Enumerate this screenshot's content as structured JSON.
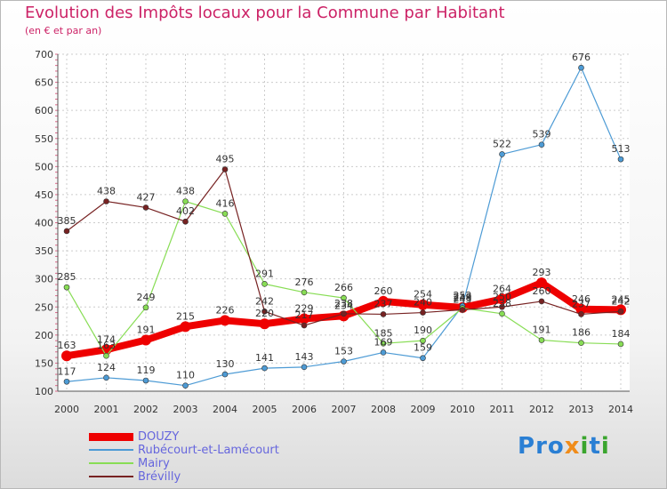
{
  "title": "Evolution des Impôts locaux pour la Commune par Habitant",
  "subtitle": "(en € et par an)",
  "logo": {
    "letters": [
      "P",
      "r",
      "o",
      "x",
      "i",
      "t",
      "i"
    ],
    "colors": [
      "#2a7fd4",
      "#2a7fd4",
      "#2a7fd4",
      "#f08c1a",
      "#3aa52e",
      "#2a7fd4",
      "#3aa52e"
    ]
  },
  "chart_data": {
    "type": "line",
    "x": [
      2000,
      2001,
      2002,
      2003,
      2004,
      2005,
      2006,
      2007,
      2008,
      2009,
      2010,
      2011,
      2012,
      2013,
      2014
    ],
    "ylim": [
      100,
      700
    ],
    "yticks": [
      100,
      150,
      200,
      250,
      300,
      350,
      400,
      450,
      500,
      550,
      600,
      650,
      700
    ],
    "grid": true,
    "legend_position": "bottom-left",
    "series": [
      {
        "name": "DOUZY",
        "color": "#ee0000",
        "values": [
          163,
          174,
          191,
          215,
          226,
          220,
          229,
          234,
          260,
          254,
          249,
          264,
          293,
          246,
          245
        ],
        "labels": [
          "163",
          "174",
          "191",
          "215",
          "226",
          "220",
          "229",
          "234",
          "260",
          "254",
          "249",
          "264",
          "293",
          "246",
          "245"
        ]
      },
      {
        "name": "Rubécourt-et-Lamécourt",
        "color": "#4d9bd5",
        "values": [
          117,
          124,
          119,
          110,
          130,
          141,
          143,
          153,
          169,
          159,
          252,
          522,
          539,
          676,
          513
        ],
        "labels": [
          "117",
          "124",
          "119",
          "110",
          "130",
          "141",
          "143",
          "153",
          "169",
          "159",
          "252",
          "522",
          "539",
          "676",
          "513"
        ]
      },
      {
        "name": "Mairy",
        "color": "#88dd55",
        "values": [
          285,
          163,
          249,
          438,
          416,
          291,
          276,
          266,
          185,
          190,
          248,
          238,
          191,
          186,
          184
        ],
        "labels": [
          "285",
          "163",
          "249",
          "438",
          "416",
          "291",
          "276",
          "266",
          "185",
          "190",
          "248",
          "238",
          "191",
          "186",
          "184"
        ]
      },
      {
        "name": "Brévilly",
        "color": "#772222",
        "values": [
          385,
          438,
          427,
          402,
          495,
          242,
          217,
          238,
          237,
          240,
          245,
          250,
          260,
          237,
          242
        ],
        "labels": [
          "385",
          "438",
          "427",
          "402",
          "495",
          "242",
          "217",
          "238",
          "237",
          "240",
          "245",
          "250",
          "260",
          "237",
          "242"
        ]
      }
    ]
  }
}
